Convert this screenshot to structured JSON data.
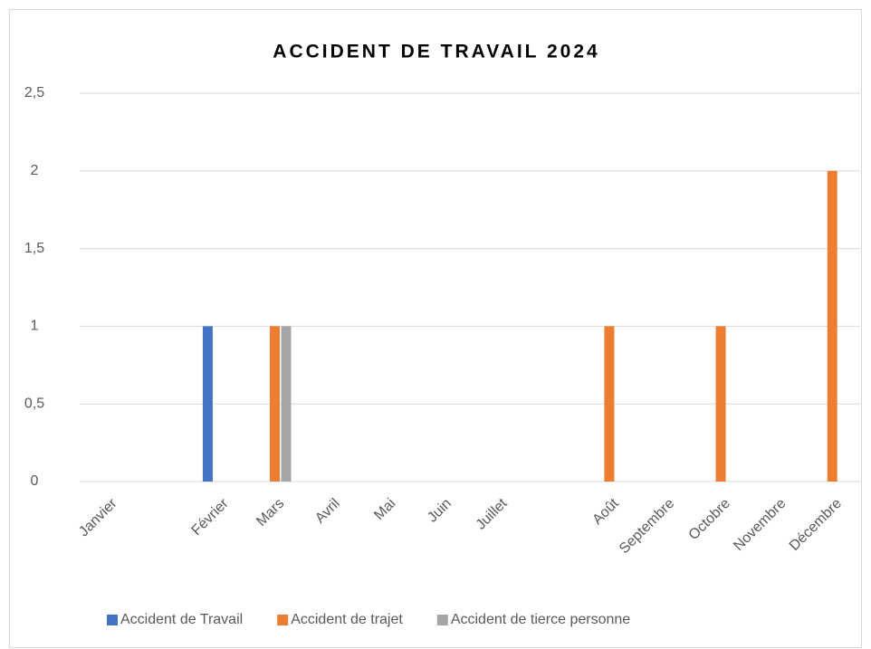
{
  "chart_data": {
    "type": "bar",
    "title": "ACCIDENT DE TRAVAIL 2024",
    "categories": [
      "Janvier",
      null,
      "Février",
      "Mars",
      "Avril",
      "Mai",
      "Juin",
      "Juillet",
      null,
      "Août",
      "Septembre",
      "Octobre",
      "Novembre",
      "Décembre"
    ],
    "series": [
      {
        "name": "Accident de Travail",
        "color": "#4472c4",
        "values": [
          0,
          null,
          1,
          0,
          0,
          0,
          0,
          0,
          null,
          0,
          0,
          0,
          0,
          0
        ]
      },
      {
        "name": "Accident de trajet",
        "color": "#ed7d31",
        "values": [
          0,
          null,
          0,
          1,
          0,
          0,
          0,
          0,
          null,
          1,
          0,
          1,
          0,
          2
        ]
      },
      {
        "name": "Accident de tierce personne",
        "color": "#a5a5a5",
        "values": [
          0,
          null,
          0,
          1,
          0,
          0,
          0,
          0,
          null,
          0,
          0,
          0,
          0,
          0
        ]
      }
    ],
    "ylim": [
      0,
      2.5
    ],
    "yticks": [
      0,
      {
        "value": 0.5,
        "label": "0,5"
      },
      1,
      {
        "value": 1.5,
        "label": "1,5"
      },
      2,
      {
        "value": 2.5,
        "label": "2,5"
      }
    ],
    "grid": true,
    "legend": "bottom"
  }
}
